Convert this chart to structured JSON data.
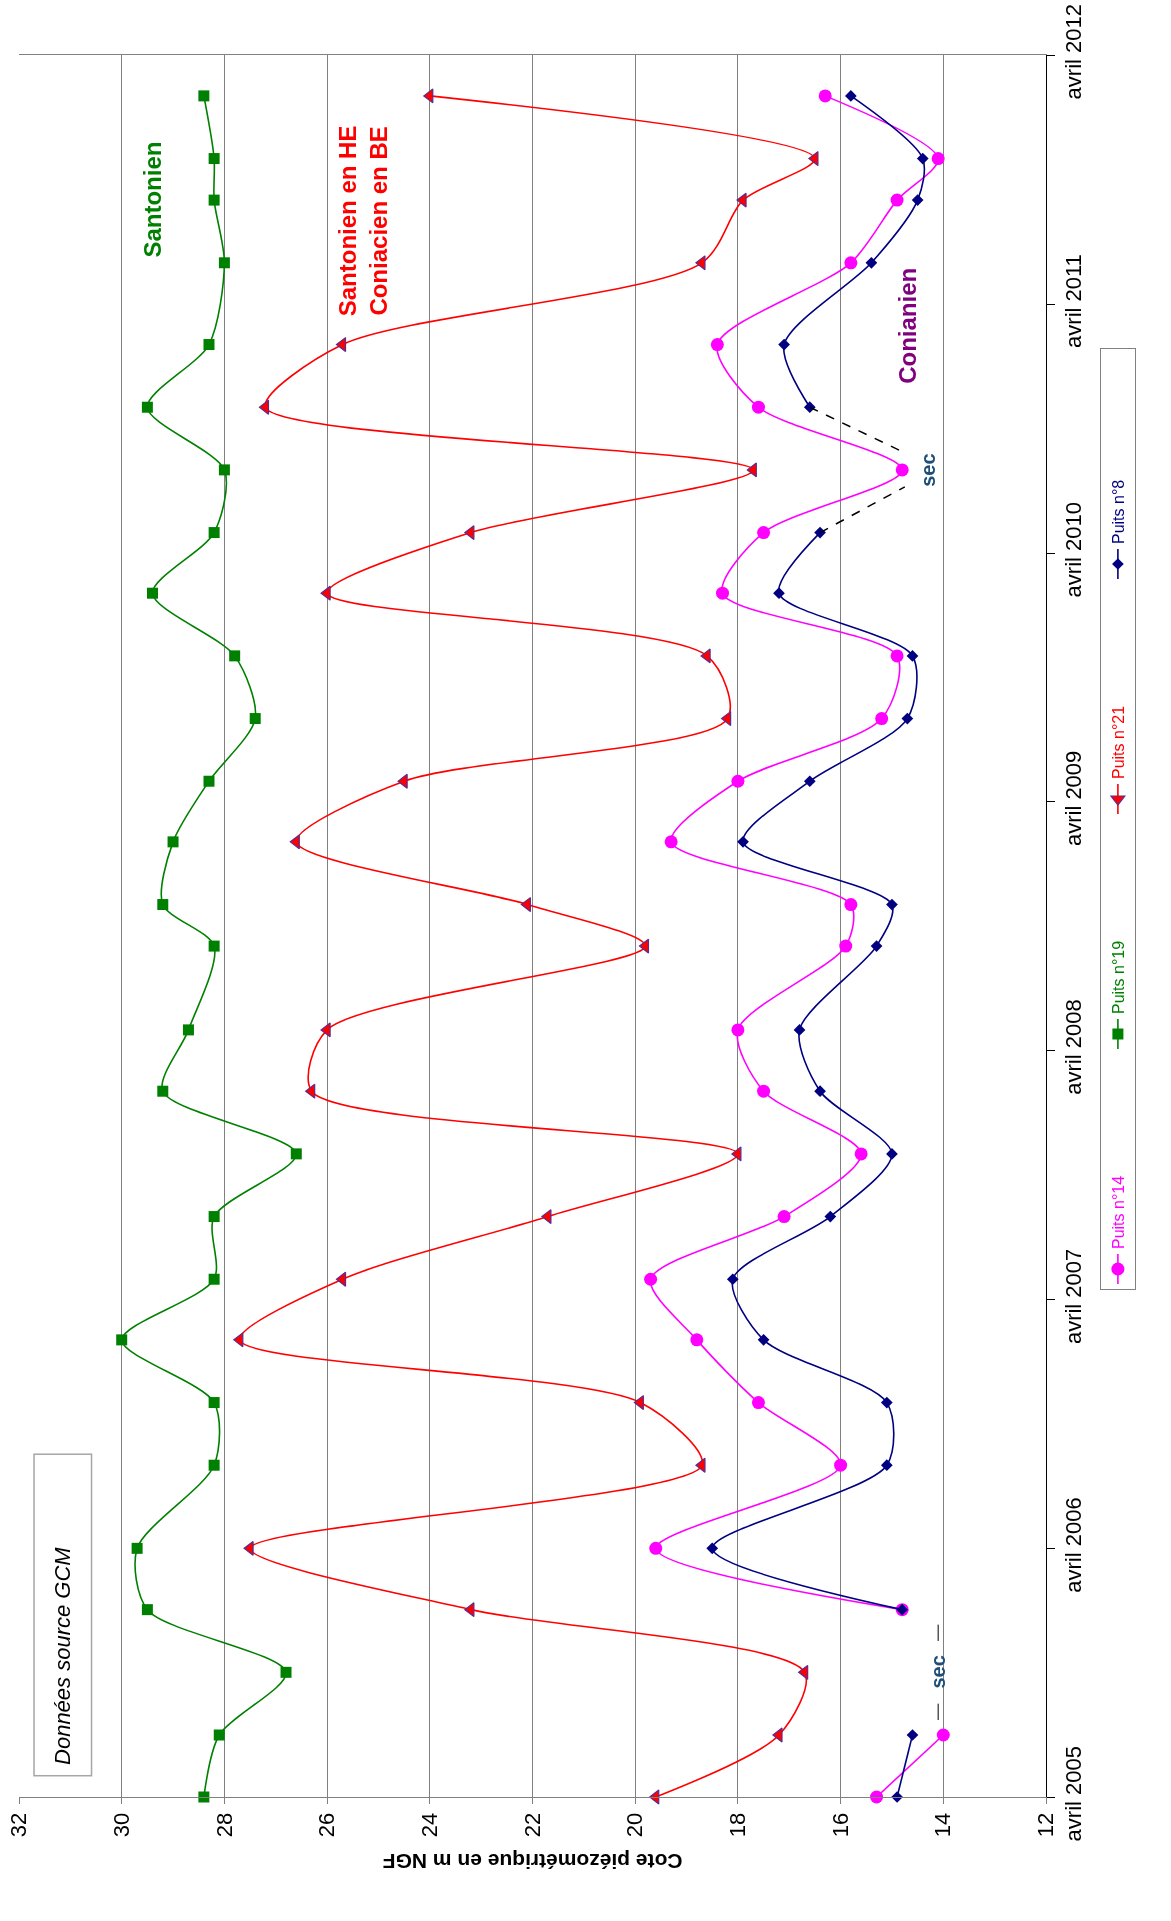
{
  "chart_data": {
    "type": "line",
    "xlabel": "Cote piézométrique en m NGF",
    "x": [
      "2005-04",
      "2005-07",
      "2005-10",
      "2006-01",
      "2006-04",
      "2006-08",
      "2006-11",
      "2007-02",
      "2007-05",
      "2007-08",
      "2007-11",
      "2008-02",
      "2008-05",
      "2008-09",
      "2008-11",
      "2009-02",
      "2009-05",
      "2009-08",
      "2009-11",
      "2010-02",
      "2010-05",
      "2010-08",
      "2010-11",
      "2011-02",
      "2011-06",
      "2011-09",
      "2011-11",
      "2012-02"
    ],
    "series": [
      {
        "name": "Puits n°14",
        "color": "#ff00ff",
        "marker": "circle",
        "values": [
          15.3,
          14.0,
          null,
          14.8,
          19.6,
          16.0,
          17.6,
          18.8,
          19.7,
          17.1,
          15.6,
          17.5,
          18.0,
          15.9,
          15.8,
          19.3,
          18.0,
          15.2,
          14.9,
          18.3,
          17.5,
          14.8,
          17.6,
          18.4,
          15.8,
          14.9,
          14.1,
          16.3
        ]
      },
      {
        "name": "Puits n°19",
        "color": "#008000",
        "marker": "square",
        "values": [
          28.4,
          28.1,
          26.8,
          29.5,
          29.7,
          28.2,
          28.2,
          30.0,
          28.2,
          28.2,
          26.6,
          29.2,
          28.7,
          28.2,
          29.2,
          29.0,
          28.3,
          27.4,
          27.8,
          29.4,
          28.2,
          28.0,
          29.5,
          28.3,
          28.0,
          28.2,
          28.2,
          28.4
        ]
      },
      {
        "name": "Puits n°21",
        "color": "#ff0000",
        "marker": "triangle",
        "values": [
          19.6,
          17.2,
          16.7,
          23.2,
          27.5,
          18.7,
          19.9,
          27.7,
          25.7,
          21.7,
          18.0,
          26.3,
          26.0,
          19.8,
          22.1,
          26.6,
          24.5,
          18.2,
          18.6,
          26.0,
          23.2,
          17.7,
          27.2,
          25.7,
          18.7,
          17.9,
          16.5,
          24.0
        ]
      },
      {
        "name": "Puits n°8",
        "color": "#000080",
        "marker": "diamond",
        "values": [
          14.9,
          14.6,
          null,
          14.8,
          18.5,
          15.1,
          15.1,
          17.5,
          18.1,
          16.2,
          15.0,
          16.4,
          16.8,
          15.3,
          15.0,
          17.9,
          16.6,
          14.7,
          14.6,
          17.2,
          16.4,
          null,
          16.6,
          17.1,
          15.4,
          14.5,
          14.4,
          15.8
        ]
      }
    ],
    "orientation": "horizontal",
    "ylim": [
      "2005-04",
      "2012-04"
    ],
    "yticks": [
      {
        "value": "2005-04",
        "label": "avril 2005"
      },
      {
        "value": "2006-04",
        "label": "avril 2006"
      },
      {
        "value": "2007-04",
        "label": "avril 2007"
      },
      {
        "value": "2008-04",
        "label": "avril 2008"
      },
      {
        "value": "2009-04",
        "label": "avril 2009"
      },
      {
        "value": "2010-04",
        "label": "avril 2010"
      },
      {
        "value": "2011-04",
        "label": "avril 2011"
      },
      {
        "value": "2012-04",
        "label": "avril 2012"
      }
    ],
    "xlim": [
      32,
      12
    ],
    "xticks": [
      32,
      30,
      28,
      26,
      24,
      22,
      20,
      18,
      16,
      14,
      12
    ],
    "grid": "x",
    "legend": "right",
    "line_style": "solid",
    "annotations": [
      "sec",
      {
        "text": "sec",
        "x": 16.4,
        "y": "2010-05"
      },
      "Santonien",
      "Santonien en HE\nConiacien en BE",
      "Conianien",
      "Données source GCM"
    ]
  }
}
